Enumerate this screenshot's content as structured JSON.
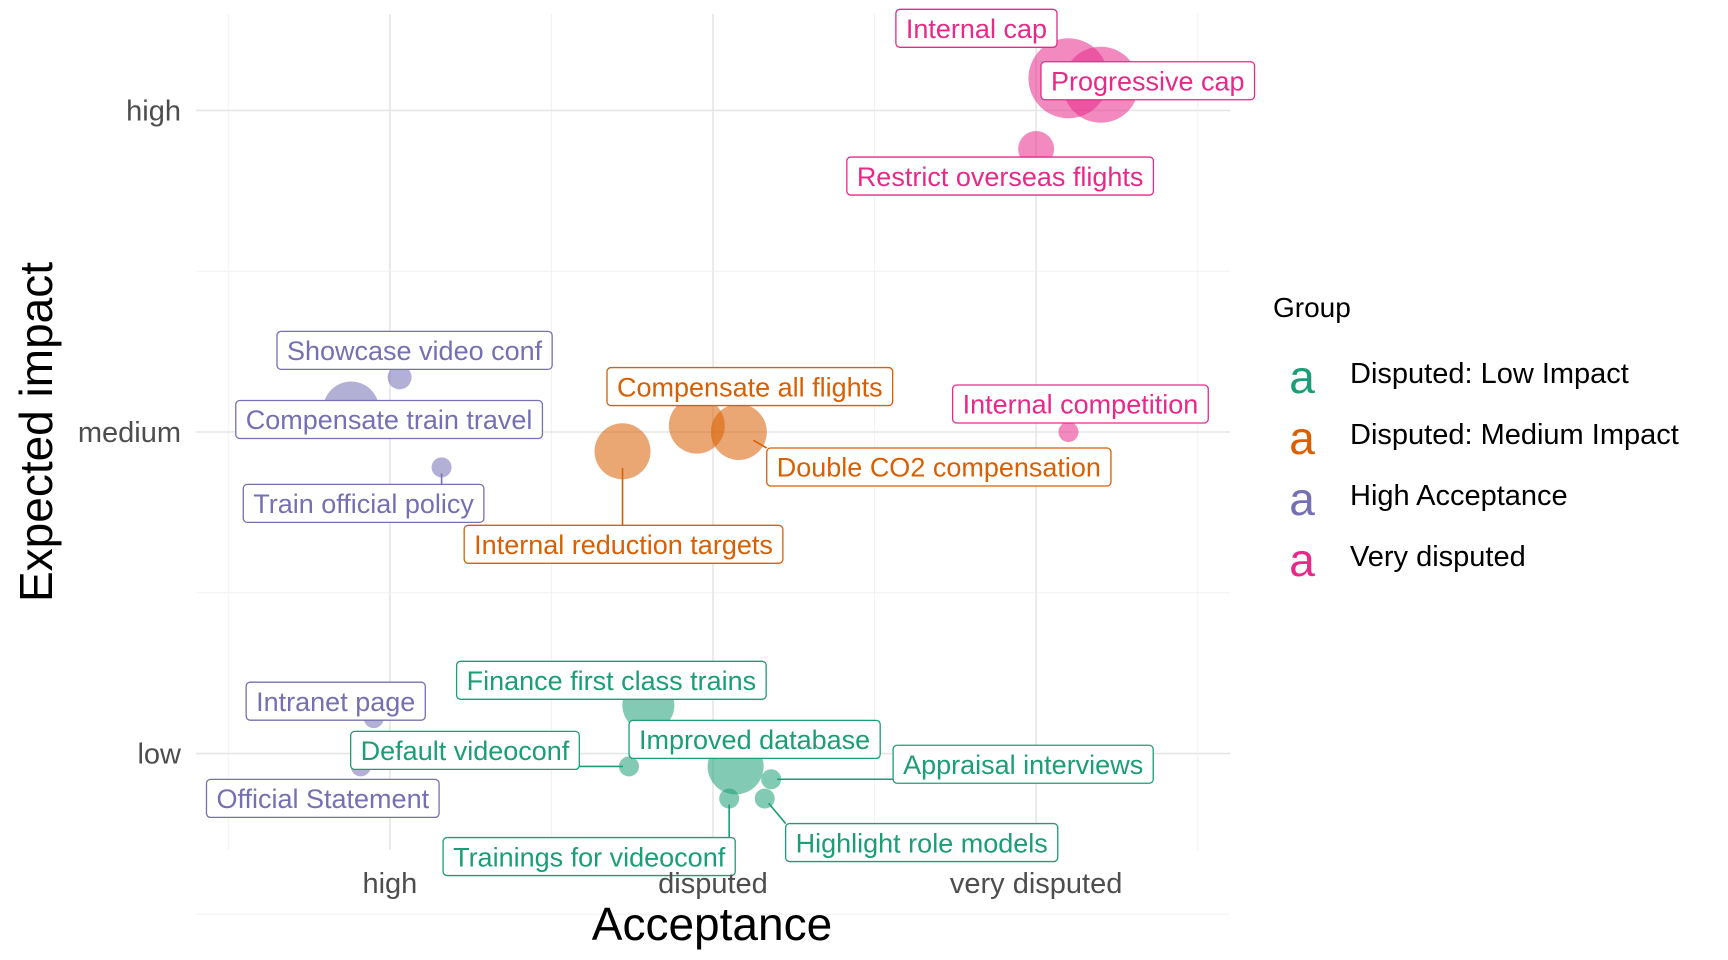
{
  "chart_data": {
    "type": "scatter",
    "xlabel": "Acceptance",
    "ylabel": "Expected impact",
    "x_ticks": [
      "high",
      "disputed",
      "very disputed"
    ],
    "y_ticks": [
      "low",
      "medium",
      "high"
    ],
    "xlim": [
      0.4,
      3.6
    ],
    "ylim": [
      0.7,
      3.3
    ],
    "grid": true,
    "legend": {
      "title": "Group",
      "position": "right",
      "key_glyph": "a",
      "entries": [
        {
          "name": "Disputed: Low Impact",
          "color": "#1b9e77"
        },
        {
          "name": "Disputed: Medium Impact",
          "color": "#d95f02"
        },
        {
          "name": "High Acceptance",
          "color": "#7570b3"
        },
        {
          "name": "Very disputed",
          "color": "#e7298a"
        }
      ]
    },
    "points": [
      {
        "label": "Internal cap",
        "group": "Very disputed",
        "x": 3.1,
        "y": 3.1,
        "size": 40
      },
      {
        "label": "Progressive cap",
        "group": "Very disputed",
        "x": 3.2,
        "y": 3.08,
        "size": 38
      },
      {
        "label": "Restrict overseas flights",
        "group": "Very disputed",
        "x": 3.0,
        "y": 2.88,
        "size": 18
      },
      {
        "label": "Internal competition",
        "group": "Very disputed",
        "x": 3.1,
        "y": 2.0,
        "size": 10
      },
      {
        "label": "Compensate all flights",
        "group": "Disputed: Medium Impact",
        "x": 1.95,
        "y": 2.02,
        "size": 28
      },
      {
        "label": "Double CO2 compensation",
        "group": "Disputed: Medium Impact",
        "x": 2.08,
        "y": 2.0,
        "size": 28
      },
      {
        "label": "Internal reduction targets",
        "group": "Disputed: Medium Impact",
        "x": 1.72,
        "y": 1.94,
        "size": 28
      },
      {
        "label": "Showcase video conf",
        "group": "High Acceptance",
        "x": 1.03,
        "y": 2.17,
        "size": 12
      },
      {
        "label": "Compensate train travel",
        "group": "High Acceptance",
        "x": 0.88,
        "y": 2.07,
        "size": 28
      },
      {
        "label": "Train official policy",
        "group": "High Acceptance",
        "x": 1.16,
        "y": 1.89,
        "size": 10
      },
      {
        "label": "Intranet page",
        "group": "High Acceptance",
        "x": 0.95,
        "y": 1.11,
        "size": 10
      },
      {
        "label": "Official Statement",
        "group": "High Acceptance",
        "x": 0.91,
        "y": 0.96,
        "size": 10
      },
      {
        "label": "Finance first class trains",
        "group": "Disputed: Low Impact",
        "x": 1.8,
        "y": 1.15,
        "size": 26
      },
      {
        "label": "Improved database",
        "group": "Disputed: Low Impact",
        "x": 2.07,
        "y": 0.96,
        "size": 28
      },
      {
        "label": "Default videoconf",
        "group": "Disputed: Low Impact",
        "x": 1.74,
        "y": 0.96,
        "size": 10
      },
      {
        "label": "Appraisal interviews",
        "group": "Disputed: Low Impact",
        "x": 2.18,
        "y": 0.92,
        "size": 10
      },
      {
        "label": "Trainings for videoconf",
        "group": "Disputed: Low Impact",
        "x": 2.05,
        "y": 0.86,
        "size": 10
      },
      {
        "label": "Highlight role models",
        "group": "Disputed: Low Impact",
        "x": 2.16,
        "y": 0.86,
        "size": 10
      }
    ]
  }
}
